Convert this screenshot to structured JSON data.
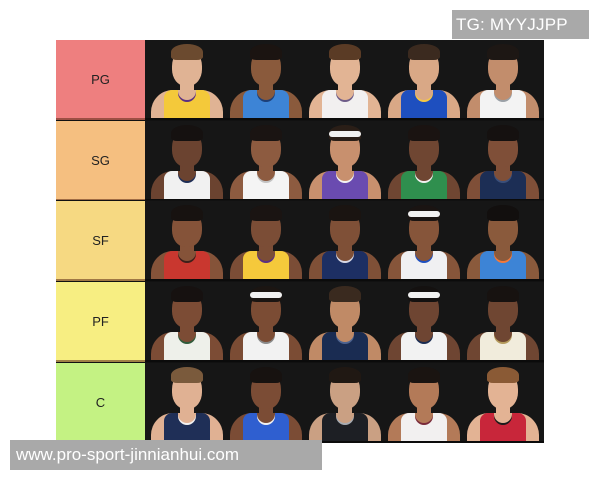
{
  "watermarks": {
    "top": "TG: MYYJJPP",
    "bottom": "www.pro-sport-jinnianhui.com"
  },
  "tiers": [
    {
      "label": "PG",
      "color": "#ee7f7f",
      "players": [
        {
          "skin": "#e0b394",
          "hair": "#6b4a2f",
          "jersey": "#f4c93a",
          "trim": "#5b2f82"
        },
        {
          "skin": "#8a5a3c",
          "hair": "#1b1411",
          "jersey": "#3d84d6",
          "trim": "#1d3f78"
        },
        {
          "skin": "#e2b494",
          "hair": "#5a3b25",
          "jersey": "#f2f0f0",
          "trim": "#6e5c88"
        },
        {
          "skin": "#d9a886",
          "hair": "#3b2a1f",
          "jersey": "#1e4fbf",
          "trim": "#f7c843"
        },
        {
          "skin": "#c28d6c",
          "hair": "#1d1714",
          "jersey": "#f3f3f3",
          "trim": "#9aa0a6"
        }
      ]
    },
    {
      "label": "SG",
      "color": "#f5bf80",
      "players": [
        {
          "skin": "#6b4330",
          "hair": "#151110",
          "jersey": "#f1f1f1",
          "trim": "#1d2d55"
        },
        {
          "skin": "#8d5b40",
          "hair": "#1a1412",
          "jersey": "#f4f4f4",
          "trim": "#c2c2c2"
        },
        {
          "skin": "#c8906e",
          "hair": "#2a1e17",
          "jersey": "#6a4bb0",
          "trim": "#f4f4f4",
          "band": true
        },
        {
          "skin": "#6f4632",
          "hair": "#1a1311",
          "jersey": "#2f8f4e",
          "trim": "#f1f1f1"
        },
        {
          "skin": "#7f4f38",
          "hair": "#151110",
          "jersey": "#1c2e55",
          "trim": "#3b4f7a"
        }
      ]
    },
    {
      "label": "SF",
      "color": "#f6d982",
      "players": [
        {
          "skin": "#855339",
          "hair": "#171210",
          "jersey": "#c9372f",
          "trim": "#3d1f1a"
        },
        {
          "skin": "#7b4d36",
          "hair": "#1a1412",
          "jersey": "#f5c93b",
          "trim": "#5b2f82"
        },
        {
          "skin": "#7f5037",
          "hair": "#1a1411",
          "jersey": "#1d2f63",
          "trim": "#d9d9e6"
        },
        {
          "skin": "#86553a",
          "hair": "#1a1412",
          "jersey": "#f0f0f2",
          "trim": "#1e4fbf",
          "band": true
        },
        {
          "skin": "#8a5a3c",
          "hair": "#120f0e",
          "jersey": "#3d84d6",
          "trim": "#f4793a"
        }
      ]
    },
    {
      "label": "PF",
      "color": "#f7ee82",
      "players": [
        {
          "skin": "#7c4c35",
          "hair": "#161110",
          "jersey": "#eef0ea",
          "trim": "#2f5b3a"
        },
        {
          "skin": "#7b4c34",
          "hair": "#1b1512",
          "jersey": "#f2f2f2",
          "trim": "#8a8a8a",
          "band": true
        },
        {
          "skin": "#c08a66",
          "hair": "#3a2a1f",
          "jersey": "#1a2c52",
          "trim": "#4d6390"
        },
        {
          "skin": "#6e4532",
          "hair": "#141110",
          "jersey": "#f2f2f2",
          "trim": "#1a2c52",
          "band": true
        },
        {
          "skin": "#6f4632",
          "hair": "#171210",
          "jersey": "#f1ecdc",
          "trim": "#b49a5c"
        }
      ]
    },
    {
      "label": "C",
      "color": "#c4f283",
      "players": [
        {
          "skin": "#e0b193",
          "hair": "#7a5a3c",
          "jersey": "#1f2f57",
          "trim": "#f2f2f2"
        },
        {
          "skin": "#7b4c35",
          "hair": "#171210",
          "jersey": "#2f5fd0",
          "trim": "#f2f2f2"
        },
        {
          "skin": "#caa083",
          "hair": "#201813",
          "jersey": "#1d1f24",
          "trim": "#a8acb2"
        },
        {
          "skin": "#b37a58",
          "hair": "#1a1411",
          "jersey": "#f2f0f0",
          "trim": "#7a2a3a"
        },
        {
          "skin": "#e3b394",
          "hair": "#8a5a35",
          "jersey": "#c8263a",
          "trim": "#1b1b1b"
        }
      ]
    }
  ]
}
